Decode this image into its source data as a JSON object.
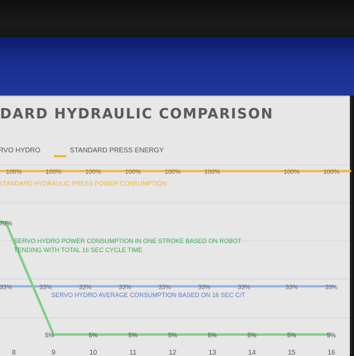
{
  "chart_data": {
    "type": "line",
    "title": "DARD HYDRAULIC COMPARISON",
    "legend": [
      "RVO HYDRO",
      "STANDARD PRESS ENERGY"
    ],
    "x": [
      8,
      9,
      10,
      11,
      12,
      13,
      14,
      15,
      16
    ],
    "ylim": [
      0,
      110
    ],
    "grid": true,
    "series": [
      {
        "name": "STANDARD PRESS ENERGY",
        "color": "#f0b530",
        "points": [
          [
            7.4,
            100
          ],
          [
            8,
            100
          ],
          [
            9,
            100
          ],
          [
            10,
            100
          ],
          [
            11,
            100
          ],
          [
            12,
            100
          ],
          [
            13,
            100
          ],
          [
            15,
            100
          ],
          [
            16,
            100
          ],
          [
            16.5,
            100
          ]
        ],
        "labels": [
          [
            7.4,
            "100%"
          ],
          [
            8,
            "100%"
          ],
          [
            9,
            "100%"
          ],
          [
            10,
            "100%"
          ],
          [
            11,
            "100%"
          ],
          [
            12,
            "100%"
          ],
          [
            13,
            "100%"
          ],
          [
            15,
            "100%"
          ],
          [
            16,
            "100%"
          ]
        ]
      },
      {
        "name": "",
        "color": "#8eaedb",
        "points": [
          [
            7.4,
            33
          ],
          [
            16.1,
            33
          ]
        ],
        "labels": [
          [
            7.8,
            "33%"
          ],
          [
            8.8,
            "33%"
          ],
          [
            9.8,
            "33%"
          ],
          [
            10.8,
            "33%"
          ],
          [
            11.8,
            "33%"
          ],
          [
            12.8,
            "33%"
          ],
          [
            13.8,
            "33%"
          ],
          [
            15,
            "33%"
          ],
          [
            16,
            "33%"
          ]
        ]
      },
      {
        "name": "",
        "color": "#7fcf8a",
        "points": [
          [
            7.4,
            70
          ],
          [
            7.8,
            70
          ],
          [
            9,
            5
          ],
          [
            16,
            5
          ]
        ],
        "labels": [
          [
            7.8,
            "70%"
          ],
          [
            8.9,
            "5%"
          ],
          [
            10,
            "5%"
          ],
          [
            11,
            "5%"
          ],
          [
            12,
            "5%"
          ],
          [
            13,
            "5%"
          ],
          [
            14,
            "5%"
          ],
          [
            15,
            "5%"
          ],
          [
            16,
            "5%"
          ]
        ]
      }
    ],
    "annotations": [
      {
        "text": "STANDARD HYDRAULIC PRESS POWER CONSUMPTION",
        "color": "#f0b530"
      },
      {
        "text": "SERVO HYDRO POWER CONSUMPTION IN ONE STROKE BASED ON ROBOT",
        "color": "#3cab52"
      },
      {
        "text": "TENDING WITH TOTAL 16 SEC CYCLE TIME",
        "color": "#3cab52"
      },
      {
        "text": "SERVO HYDRO AVERAGE CONSUMPTION BASED ON 16 SEC C/T",
        "color": "#4f7fc4"
      }
    ]
  }
}
